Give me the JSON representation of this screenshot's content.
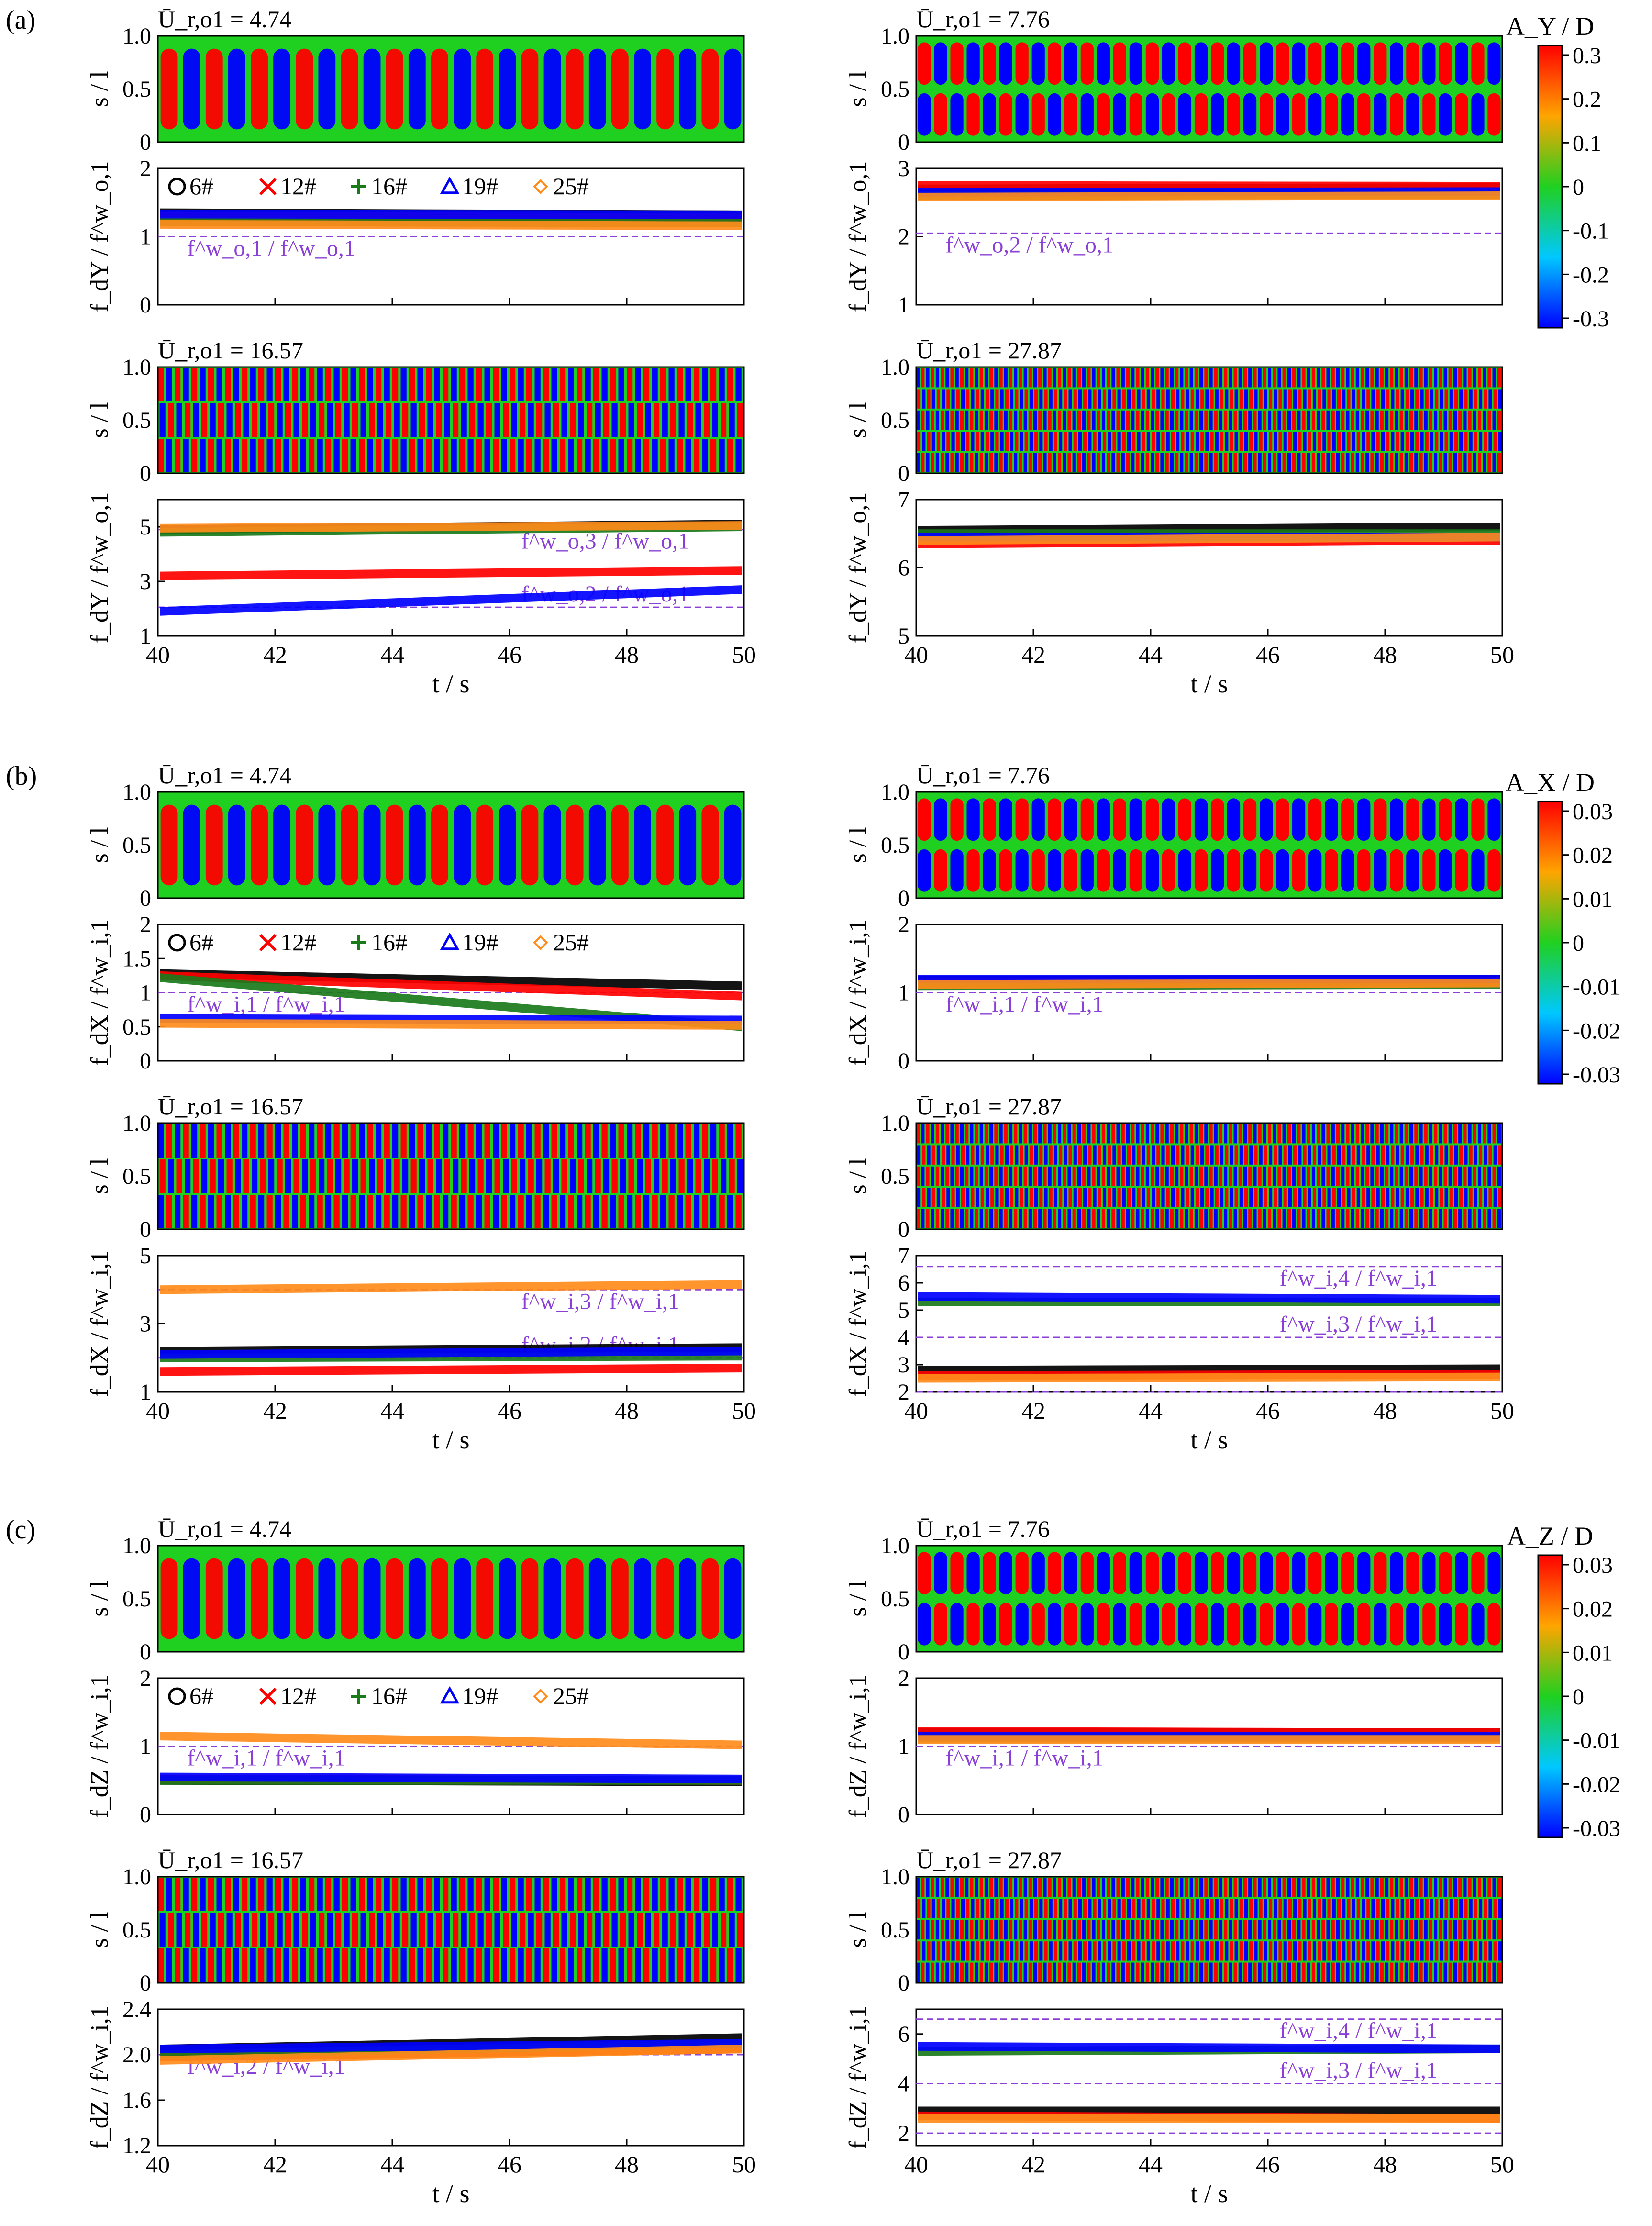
{
  "figure": {
    "time_axis": {
      "label": "t / s",
      "ticks": [
        "40",
        "42",
        "44",
        "46",
        "48",
        "50"
      ]
    },
    "spatial_axis": {
      "label": "s / l",
      "ticks": [
        "0",
        "0.5",
        "1.0"
      ]
    },
    "legend_markers": [
      {
        "symbol": "circle",
        "label": "6#",
        "color": "#000000"
      },
      {
        "symbol": "cross",
        "label": "12#",
        "color": "#ff0000"
      },
      {
        "symbol": "plus",
        "label": "16#",
        "color": "#1a7a1a"
      },
      {
        "symbol": "triangle",
        "label": "19#",
        "color": "#0000ff"
      },
      {
        "symbol": "diamond",
        "label": "25#",
        "color": "#ff8c1a"
      }
    ],
    "colors": {
      "reference_line": "#8a3fd6"
    },
    "panels": [
      {
        "label": "(a)",
        "colorbar": {
          "label": "A_Y / D",
          "ticks": [
            "0.3",
            "0.2",
            "0.1",
            "0",
            "-0.1",
            "-0.2",
            "-0.3"
          ]
        },
        "cells": [
          {
            "speed_label": "Ū_r,o1 = 4.74",
            "freq_ylabel": "f_dY / f^w_o,1",
            "ylim": [
              0,
              2
            ],
            "yticks": [
              "0",
              "1",
              "2"
            ],
            "refs": [
              {
                "y": 1.0,
                "label": "f^w_o,1 / f^w_o,1"
              }
            ],
            "legend": true
          },
          {
            "speed_label": "Ū_r,o1 = 7.76",
            "freq_ylabel": "f_dY / f^w_o,1",
            "ylim": [
              1,
              3
            ],
            "yticks": [
              "1",
              "2",
              "3"
            ],
            "refs": [
              {
                "y": 2.05,
                "label": "f^w_o,2 / f^w_o,1"
              }
            ],
            "legend": false
          },
          {
            "speed_label": "Ū_r,o1 = 16.57",
            "freq_ylabel": "f_dY / f^w_o,1",
            "ylim": [
              1,
              6
            ],
            "yticks": [
              "1",
              "3",
              "5"
            ],
            "refs": [
              {
                "y": 4.9,
                "label": "f^w_o,3 / f^w_o,1"
              },
              {
                "y": 2.05,
                "label": "f^w_o,2 / f^w_o,1"
              }
            ],
            "legend": false
          },
          {
            "speed_label": "Ū_r,o1 = 27.87",
            "freq_ylabel": "f_dY / f^w_o,1",
            "ylim": [
              5,
              7
            ],
            "yticks": [
              "5",
              "6",
              "7"
            ],
            "refs": [],
            "legend": false
          }
        ]
      },
      {
        "label": "(b)",
        "colorbar": {
          "label": "A_X / D",
          "ticks": [
            "0.03",
            "0.02",
            "0.01",
            "0",
            "-0.01",
            "-0.02",
            "-0.03"
          ]
        },
        "cells": [
          {
            "speed_label": "Ū_r,o1 = 4.74",
            "freq_ylabel": "f_dX / f^w_i,1",
            "ylim": [
              0,
              2
            ],
            "yticks": [
              "0",
              "0.5",
              "1",
              "1.5",
              "2"
            ],
            "refs": [
              {
                "y": 1.0,
                "label": "f^w_i,1 / f^w_i,1"
              }
            ],
            "legend": true
          },
          {
            "speed_label": "Ū_r,o1 = 7.76",
            "freq_ylabel": "f_dX / f^w_i,1",
            "ylim": [
              0,
              2
            ],
            "yticks": [
              "0",
              "1",
              "2"
            ],
            "refs": [
              {
                "y": 1.0,
                "label": "f^w_i,1 / f^w_i,1"
              }
            ],
            "legend": false
          },
          {
            "speed_label": "Ū_r,o1 = 16.57",
            "freq_ylabel": "f_dX / f^w_i,1",
            "ylim": [
              1,
              5
            ],
            "yticks": [
              "1",
              "3",
              "5"
            ],
            "refs": [
              {
                "y": 4.0,
                "label": "f^w_i,3 / f^w_i,1"
              },
              {
                "y": 2.0,
                "label": "f^w_i,2 / f^w_i,1"
              }
            ],
            "legend": false
          },
          {
            "speed_label": "Ū_r,o1 = 27.87",
            "freq_ylabel": "f_dX / f^w_i,1",
            "ylim": [
              2,
              7
            ],
            "yticks": [
              "2",
              "3",
              "4",
              "5",
              "6",
              "7"
            ],
            "refs": [
              {
                "y": 6.6,
                "label": "f^w_i,4 / f^w_i,1"
              },
              {
                "y": 4.0,
                "label": "f^w_i,3 / f^w_i,1"
              },
              {
                "y": 2.0,
                "label": ""
              }
            ],
            "legend": false
          }
        ]
      },
      {
        "label": "(c)",
        "colorbar": {
          "label": "A_Z / D",
          "ticks": [
            "0.03",
            "0.02",
            "0.01",
            "0",
            "-0.01",
            "-0.02",
            "-0.03"
          ]
        },
        "cells": [
          {
            "speed_label": "Ū_r,o1 = 4.74",
            "freq_ylabel": "f_dZ / f^w_i,1",
            "ylim": [
              0,
              2
            ],
            "yticks": [
              "0",
              "1",
              "2"
            ],
            "refs": [
              {
                "y": 1.0,
                "label": "f^w_i,1 / f^w_i,1"
              }
            ],
            "legend": true
          },
          {
            "speed_label": "Ū_r,o1 = 7.76",
            "freq_ylabel": "f_dZ / f^w_i,1",
            "ylim": [
              0,
              2
            ],
            "yticks": [
              "0",
              "1",
              "2"
            ],
            "refs": [
              {
                "y": 1.0,
                "label": "f^w_i,1 / f^w_i,1"
              }
            ],
            "legend": false
          },
          {
            "speed_label": "Ū_r,o1 = 16.57",
            "freq_ylabel": "f_dZ / f^w_i,1",
            "ylim": [
              1.2,
              2.4
            ],
            "yticks": [
              "1.2",
              "1.6",
              "2.0",
              "2.4"
            ],
            "refs": [
              {
                "y": 2.0,
                "label": "f^w_i,2 / f^w_i,1"
              }
            ],
            "legend": false
          },
          {
            "speed_label": "Ū_r,o1 = 27.87",
            "freq_ylabel": "f_dZ / f^w_i,1",
            "ylim": [
              1.5,
              7
            ],
            "yticks": [
              "2",
              "4",
              "6"
            ],
            "refs": [
              {
                "y": 6.6,
                "label": "f^w_i,4 / f^w_i,1"
              },
              {
                "y": 4.0,
                "label": "f^w_i,3 / f^w_i,1"
              },
              {
                "y": 2.0,
                "label": ""
              }
            ],
            "legend": false
          }
        ]
      }
    ]
  },
  "chart_data": [
    {
      "type": "heatmap",
      "panel": "(a)",
      "ur": 4.74,
      "variable": "A_Y/D",
      "x_range": [
        40,
        50
      ],
      "y_range": [
        0,
        1
      ],
      "pattern": "single-mode standing wave, ~13 half-cycles"
    },
    {
      "type": "line",
      "panel": "(a)",
      "ur": 4.74,
      "series": [
        {
          "name": "6#",
          "y": [
            1.35,
            1.32
          ]
        },
        {
          "name": "12#",
          "y": [
            1.3,
            1.28
          ]
        },
        {
          "name": "16#",
          "y": [
            1.22,
            1.2
          ]
        },
        {
          "name": "19#",
          "y": [
            1.33,
            1.32
          ]
        },
        {
          "name": "25#",
          "y": [
            1.18,
            1.16
          ]
        }
      ],
      "x": [
        40,
        50
      ]
    },
    {
      "type": "heatmap",
      "panel": "(a)",
      "ur": 7.76,
      "variable": "A_Y/D",
      "x_range": [
        40,
        50
      ],
      "y_range": [
        0,
        1
      ],
      "pattern": "second-mode standing wave"
    },
    {
      "type": "line",
      "panel": "(a)",
      "ur": 7.76,
      "series": [
        {
          "name": "6#",
          "y": [
            2.7,
            2.72
          ]
        },
        {
          "name": "12#",
          "y": [
            2.75,
            2.74
          ]
        },
        {
          "name": "16#",
          "y": [
            2.6,
            2.62
          ]
        },
        {
          "name": "19#",
          "y": [
            2.65,
            2.66
          ]
        },
        {
          "name": "25#",
          "y": [
            2.58,
            2.6
          ]
        }
      ],
      "x": [
        40,
        50
      ]
    },
    {
      "type": "heatmap",
      "panel": "(a)",
      "ur": 16.57,
      "variable": "A_Y/D",
      "x_range": [
        40,
        50
      ],
      "y_range": [
        0,
        1
      ],
      "pattern": "multi-mode travelling"
    },
    {
      "type": "line",
      "panel": "(a)",
      "ur": 16.57,
      "series": [
        {
          "name": "6#",
          "y": [
            4.9,
            5.1
          ]
        },
        {
          "name": "12#",
          "y": [
            3.2,
            3.4
          ]
        },
        {
          "name": "16#",
          "y": [
            4.8,
            5.0
          ]
        },
        {
          "name": "19#",
          "y": [
            1.9,
            2.7
          ]
        },
        {
          "name": "25#",
          "y": [
            4.95,
            5.05
          ]
        }
      ],
      "x": [
        40,
        50
      ]
    },
    {
      "type": "heatmap",
      "panel": "(a)",
      "ur": 27.87,
      "variable": "A_Y/D",
      "x_range": [
        40,
        50
      ],
      "y_range": [
        0,
        1
      ],
      "pattern": "high-mode travelling"
    },
    {
      "type": "line",
      "panel": "(a)",
      "ur": 27.87,
      "series": [
        {
          "name": "6#",
          "y": [
            6.55,
            6.6
          ]
        },
        {
          "name": "12#",
          "y": [
            6.35,
            6.4
          ]
        },
        {
          "name": "16#",
          "y": [
            6.5,
            6.5
          ]
        },
        {
          "name": "19#",
          "y": [
            6.45,
            6.45
          ]
        },
        {
          "name": "25#",
          "y": [
            6.4,
            6.45
          ]
        }
      ],
      "x": [
        40,
        50
      ]
    },
    {
      "type": "heatmap",
      "panel": "(b)",
      "ur": 4.74,
      "variable": "A_X/D",
      "x_range": [
        40,
        50
      ],
      "y_range": [
        0,
        1
      ],
      "pattern": "first-mode intermittent"
    },
    {
      "type": "line",
      "panel": "(b)",
      "ur": 4.74,
      "series": [
        {
          "name": "6#",
          "y": [
            1.28,
            1.1
          ]
        },
        {
          "name": "12#",
          "y": [
            1.25,
            0.95
          ]
        },
        {
          "name": "16#",
          "y": [
            1.22,
            0.5
          ]
        },
        {
          "name": "19#",
          "y": [
            0.62,
            0.6
          ]
        },
        {
          "name": "25#",
          "y": [
            0.55,
            0.52
          ]
        }
      ],
      "x": [
        40,
        50
      ]
    },
    {
      "type": "heatmap",
      "panel": "(b)",
      "ur": 7.76,
      "variable": "A_X/D",
      "x_range": [
        40,
        50
      ],
      "y_range": [
        0,
        1
      ],
      "pattern": "first-mode standing wave"
    },
    {
      "type": "line",
      "panel": "(b)",
      "ur": 7.76,
      "series": [
        {
          "name": "6#",
          "y": [
            1.18,
            1.2
          ]
        },
        {
          "name": "12#",
          "y": [
            1.15,
            1.17
          ]
        },
        {
          "name": "16#",
          "y": [
            1.1,
            1.12
          ]
        },
        {
          "name": "19#",
          "y": [
            1.2,
            1.2
          ]
        },
        {
          "name": "25#",
          "y": [
            1.12,
            1.14
          ]
        }
      ],
      "x": [
        40,
        50
      ]
    },
    {
      "type": "heatmap",
      "panel": "(b)",
      "ur": 16.57,
      "variable": "A_X/D",
      "x_range": [
        40,
        50
      ],
      "y_range": [
        0,
        1
      ],
      "pattern": "multi-mode travelling"
    },
    {
      "type": "line",
      "panel": "(b)",
      "ur": 16.57,
      "series": [
        {
          "name": "6#",
          "y": [
            2.2,
            2.3
          ]
        },
        {
          "name": "12#",
          "y": [
            1.6,
            1.7
          ]
        },
        {
          "name": "16#",
          "y": [
            2.0,
            2.05
          ]
        },
        {
          "name": "19#",
          "y": [
            2.1,
            2.2
          ]
        },
        {
          "name": "25#",
          "y": [
            4.0,
            4.15
          ]
        }
      ],
      "x": [
        40,
        50
      ]
    },
    {
      "type": "heatmap",
      "panel": "(b)",
      "ur": 27.87,
      "variable": "A_X/D",
      "x_range": [
        40,
        50
      ],
      "y_range": [
        0,
        1
      ],
      "pattern": "high-mode travelling"
    },
    {
      "type": "line",
      "panel": "(b)",
      "ur": 27.87,
      "series": [
        {
          "name": "6#",
          "y": [
            2.8,
            2.85
          ]
        },
        {
          "name": "12#",
          "y": [
            2.6,
            2.65
          ]
        },
        {
          "name": "16#",
          "y": [
            5.3,
            5.3
          ]
        },
        {
          "name": "19#",
          "y": [
            5.5,
            5.4
          ]
        },
        {
          "name": "25#",
          "y": [
            2.5,
            2.55
          ]
        }
      ],
      "x": [
        40,
        50
      ]
    },
    {
      "type": "heatmap",
      "panel": "(c)",
      "ur": 4.74,
      "variable": "A_Z/D",
      "x_range": [
        40,
        50
      ],
      "y_range": [
        0,
        1
      ],
      "pattern": "first-mode intermittent"
    },
    {
      "type": "line",
      "panel": "(c)",
      "ur": 4.74,
      "series": [
        {
          "name": "6#",
          "y": [
            0.5,
            0.48
          ]
        },
        {
          "name": "12#",
          "y": [
            0.52,
            0.5
          ]
        },
        {
          "name": "16#",
          "y": [
            0.5,
            0.5
          ]
        },
        {
          "name": "19#",
          "y": [
            0.55,
            0.52
          ]
        },
        {
          "name": "25#",
          "y": [
            1.15,
            1.02
          ]
        }
      ],
      "x": [
        40,
        50
      ]
    },
    {
      "type": "heatmap",
      "panel": "(c)",
      "ur": 7.76,
      "variable": "A_Z/D",
      "x_range": [
        40,
        50
      ],
      "y_range": [
        0,
        1
      ],
      "pattern": "second-mode standing wave"
    },
    {
      "type": "line",
      "panel": "(c)",
      "ur": 7.76,
      "series": [
        {
          "name": "6#",
          "y": [
            1.2,
            1.2
          ]
        },
        {
          "name": "12#",
          "y": [
            1.22,
            1.2
          ]
        },
        {
          "name": "16#",
          "y": [
            1.12,
            1.12
          ]
        },
        {
          "name": "19#",
          "y": [
            1.15,
            1.15
          ]
        },
        {
          "name": "25#",
          "y": [
            1.1,
            1.1
          ]
        }
      ],
      "x": [
        40,
        50
      ]
    },
    {
      "type": "heatmap",
      "panel": "(c)",
      "ur": 16.57,
      "variable": "A_Z/D",
      "x_range": [
        40,
        50
      ],
      "y_range": [
        0,
        1
      ],
      "pattern": "multi-mode travelling"
    },
    {
      "type": "line",
      "panel": "(c)",
      "ur": 16.57,
      "series": [
        {
          "name": "6#",
          "y": [
            2.05,
            2.15
          ]
        },
        {
          "name": "12#",
          "y": [
            1.98,
            2.05
          ]
        },
        {
          "name": "16#",
          "y": [
            2.0,
            2.1
          ]
        },
        {
          "name": "19#",
          "y": [
            2.05,
            2.1
          ]
        },
        {
          "name": "25#",
          "y": [
            1.95,
            2.05
          ]
        }
      ],
      "x": [
        40,
        50
      ]
    },
    {
      "type": "heatmap",
      "panel": "(c)",
      "ur": 27.87,
      "variable": "A_Z/D",
      "x_range": [
        40,
        50
      ],
      "y_range": [
        0,
        1
      ],
      "pattern": "high-mode travelling"
    },
    {
      "type": "line",
      "panel": "(c)",
      "ur": 27.87,
      "series": [
        {
          "name": "6#",
          "y": [
            2.9,
            2.9
          ]
        },
        {
          "name": "12#",
          "y": [
            2.7,
            2.6
          ]
        },
        {
          "name": "16#",
          "y": [
            5.3,
            5.4
          ]
        },
        {
          "name": "19#",
          "y": [
            5.5,
            5.4
          ]
        },
        {
          "name": "25#",
          "y": [
            2.6,
            2.6
          ]
        }
      ],
      "x": [
        40,
        50
      ]
    }
  ]
}
